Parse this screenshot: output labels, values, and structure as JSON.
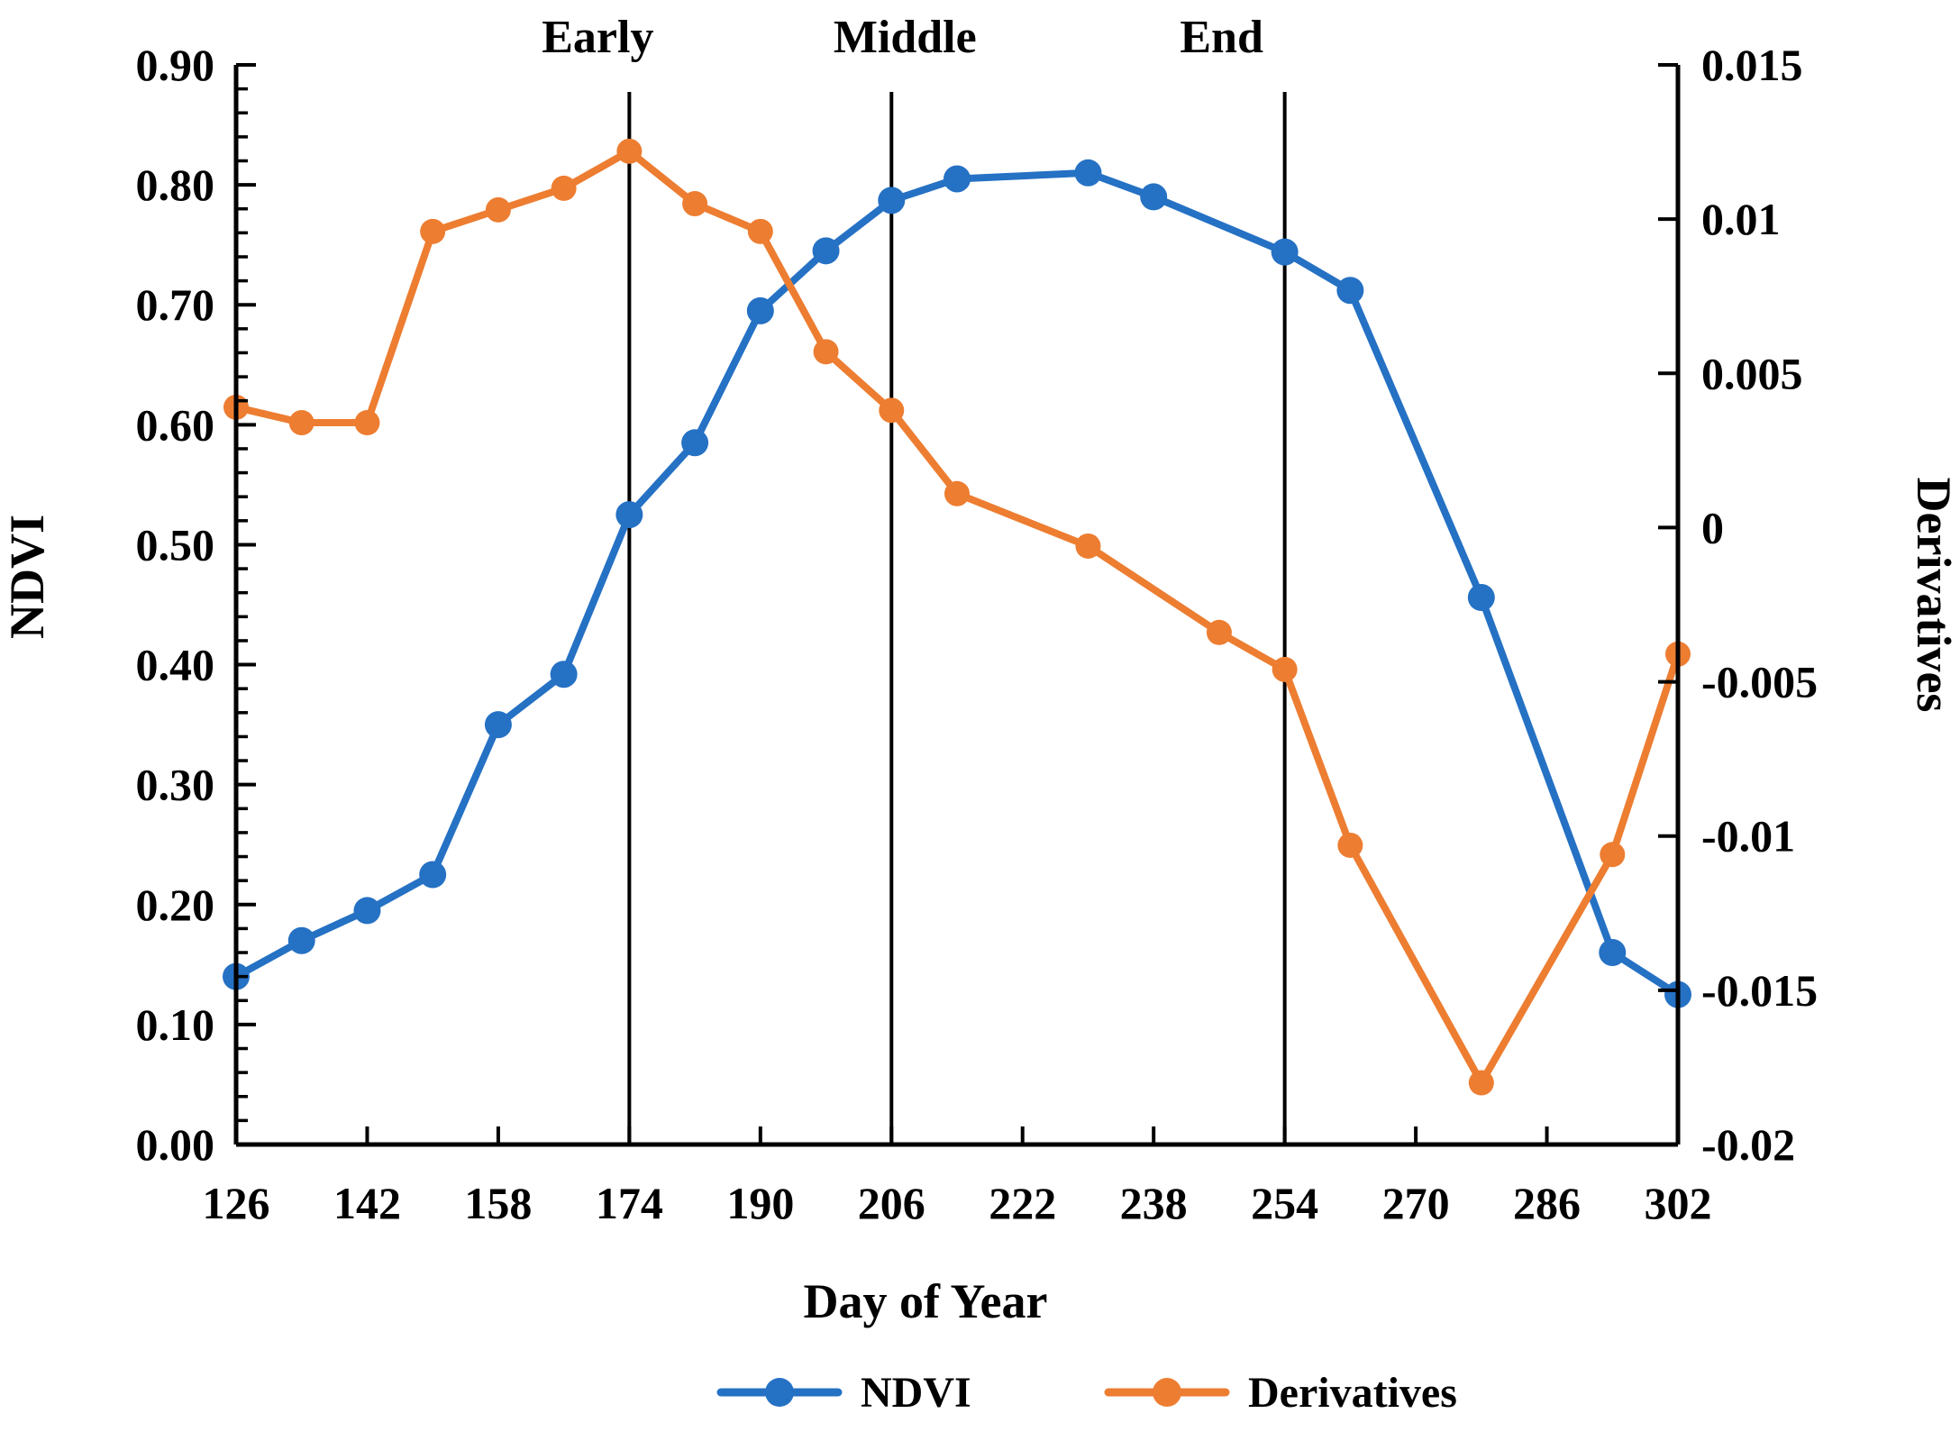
{
  "figure": {
    "background": "#ffffff",
    "xlabel": "Day of Year",
    "left_axis_title": "NDVI",
    "right_axis_title": "Derivatives",
    "phase_marker_color": "#000000",
    "axis_color": "#000000"
  },
  "chart_data": {
    "type": "line",
    "title": "",
    "xlabel": "Day of Year",
    "ylabel_left": "NDVI",
    "ylabel_right": "Derivatives",
    "x_range": [
      126,
      302
    ],
    "x_tick_labels": [
      "126",
      "142",
      "158",
      "174",
      "190",
      "206",
      "222",
      "238",
      "254",
      "270",
      "286",
      "302"
    ],
    "x_ticks": [
      126,
      142,
      158,
      174,
      190,
      206,
      222,
      238,
      254,
      270,
      286,
      302
    ],
    "left_axis": {
      "label": "NDVI",
      "min": 0.0,
      "max": 0.9,
      "major_step": 0.1,
      "minor_step": 0.02,
      "tick_labels": [
        "0.90",
        "0.80",
        "0.70",
        "0.60",
        "0.50",
        "0.40",
        "0.30",
        "0.20",
        "0.10",
        "0.00"
      ],
      "tick_values": [
        0.9,
        0.8,
        0.7,
        0.6,
        0.5,
        0.4,
        0.3,
        0.2,
        0.1,
        0.0
      ]
    },
    "right_axis": {
      "label": "Derivatives",
      "min": -0.02,
      "max": 0.015,
      "major_step": 0.005,
      "tick_labels": [
        "0.015",
        "0.01",
        "0.005",
        "0",
        "-0.005",
        "-0.01",
        "-0.015",
        "-0.02"
      ],
      "tick_values": [
        0.015,
        0.01,
        0.005,
        0,
        -0.005,
        -0.01,
        -0.015,
        -0.02
      ]
    },
    "phase_markers": [
      {
        "label": "Early",
        "day": 174
      },
      {
        "label": "Middle",
        "day": 206
      },
      {
        "label": "End",
        "day": 254
      }
    ],
    "series": [
      {
        "name": "NDVI",
        "axis": "left",
        "color": "#2571C4",
        "points": [
          [
            126,
            0.14
          ],
          [
            134,
            0.17
          ],
          [
            142,
            0.195
          ],
          [
            150,
            0.225
          ],
          [
            158,
            0.35
          ],
          [
            166,
            0.392
          ],
          [
            174,
            0.525
          ],
          [
            182,
            0.585
          ],
          [
            190,
            0.695
          ],
          [
            198,
            0.745
          ],
          [
            206,
            0.787
          ],
          [
            214,
            0.805
          ],
          [
            230,
            0.81
          ],
          [
            238,
            0.79
          ],
          [
            254,
            0.744
          ],
          [
            262,
            0.712
          ],
          [
            278,
            0.456
          ],
          [
            294,
            0.16
          ],
          [
            302,
            0.125
          ]
        ]
      },
      {
        "name": "Derivatives",
        "axis": "right",
        "color": "#ED7D31",
        "points": [
          [
            126,
            0.0039
          ],
          [
            134,
            0.0034
          ],
          [
            142,
            0.0034
          ],
          [
            150,
            0.0096
          ],
          [
            158,
            0.0103
          ],
          [
            166,
            0.011
          ],
          [
            174,
            0.0122
          ],
          [
            182,
            0.0105
          ],
          [
            190,
            0.0096
          ],
          [
            198,
            0.0057
          ],
          [
            206,
            0.0038
          ],
          [
            214,
            0.0011
          ],
          [
            230,
            -0.0006
          ],
          [
            246,
            -0.0034
          ],
          [
            254,
            -0.0046
          ],
          [
            262,
            -0.0103
          ],
          [
            278,
            -0.018
          ],
          [
            294,
            -0.0106
          ],
          [
            302,
            -0.0041
          ]
        ]
      }
    ],
    "legend": {
      "position": "bottom-center",
      "entries": [
        {
          "label": "NDVI",
          "color": "#2571C4"
        },
        {
          "label": "Derivatives",
          "color": "#ED7D31"
        }
      ]
    },
    "grid": false
  }
}
